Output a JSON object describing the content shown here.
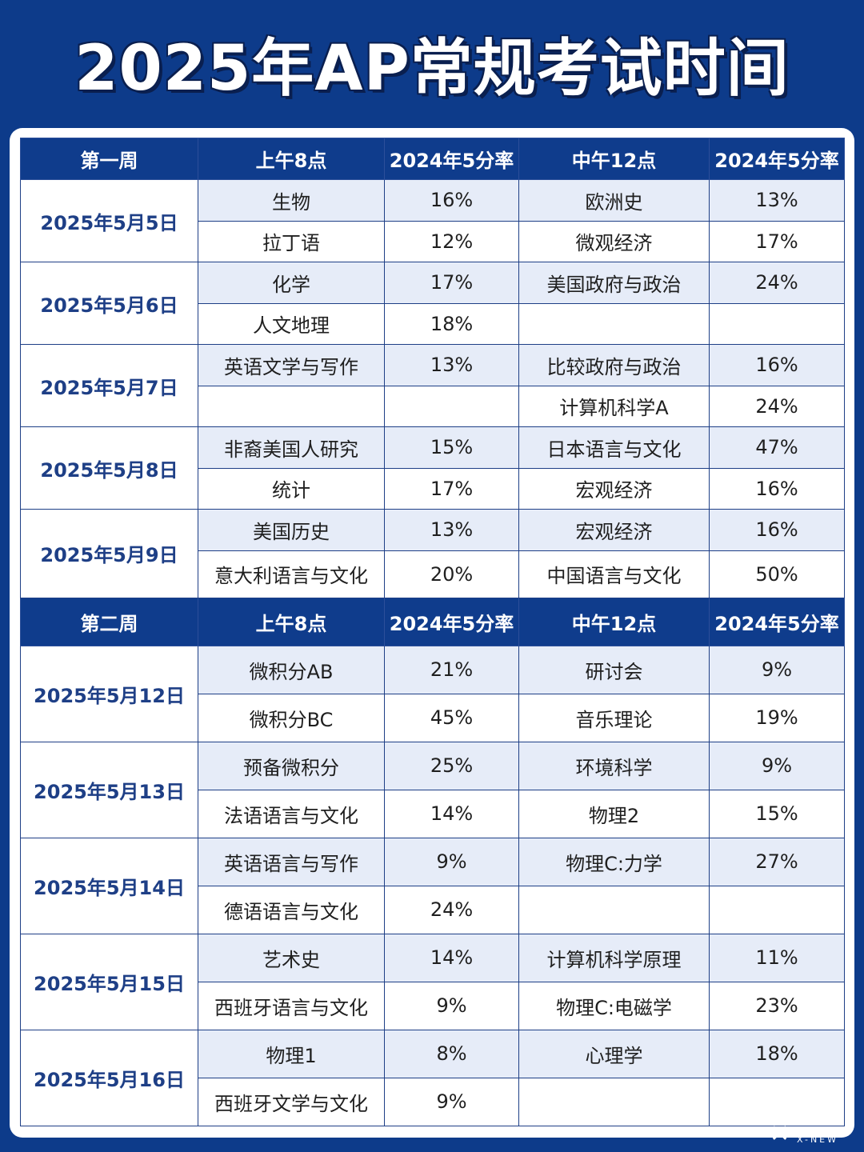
{
  "title": "2025年AP常规考试时间",
  "weeks": [
    {
      "header": [
        "第一周",
        "上午8点",
        "2024年5分率",
        "中午12点",
        "2024年5分率"
      ],
      "days": [
        {
          "date": "2025年5月5日",
          "rows": [
            {
              "am": "生物",
              "am_rate": "16%",
              "noon": "欧洲史",
              "noon_rate": "13%"
            },
            {
              "am": "拉丁语",
              "am_rate": "12%",
              "noon": "微观经济",
              "noon_rate": "17%"
            }
          ]
        },
        {
          "date": "2025年5月6日",
          "rows": [
            {
              "am": "化学",
              "am_rate": "17%",
              "noon": "美国政府与政治",
              "noon_rate": "24%"
            },
            {
              "am": "人文地理",
              "am_rate": "18%",
              "noon": "",
              "noon_rate": ""
            }
          ]
        },
        {
          "date": "2025年5月7日",
          "rows": [
            {
              "am": "英语文学与写作",
              "am_rate": "13%",
              "noon": "比较政府与政治",
              "noon_rate": "16%"
            },
            {
              "am": "",
              "am_rate": "",
              "noon": "计算机科学A",
              "noon_rate": "24%"
            }
          ]
        },
        {
          "date": "2025年5月8日",
          "rows": [
            {
              "am": "非裔美国人研究",
              "am_rate": "15%",
              "noon": "日本语言与文化",
              "noon_rate": "47%"
            },
            {
              "am": "统计",
              "am_rate": "17%",
              "noon": "宏观经济",
              "noon_rate": "16%"
            }
          ]
        },
        {
          "date": "2025年5月9日",
          "rows": [
            {
              "am": "美国历史",
              "am_rate": "13%",
              "noon": "宏观经济",
              "noon_rate": "16%"
            },
            {
              "am": "意大利语言与文化",
              "am_rate": "20%",
              "noon": "中国语言与文化",
              "noon_rate": "50%"
            }
          ]
        }
      ]
    },
    {
      "header": [
        "第二周",
        "上午8点",
        "2024年5分率",
        "中午12点",
        "2024年5分率"
      ],
      "days": [
        {
          "date": "2025年5月12日",
          "rows": [
            {
              "am": "微积分AB",
              "am_rate": "21%",
              "noon": "研讨会",
              "noon_rate": "9%"
            },
            {
              "am": "微积分BC",
              "am_rate": "45%",
              "noon": "音乐理论",
              "noon_rate": "19%"
            }
          ]
        },
        {
          "date": "2025年5月13日",
          "rows": [
            {
              "am": "预备微积分",
              "am_rate": "25%",
              "noon": "环境科学",
              "noon_rate": "9%"
            },
            {
              "am": "法语语言与文化",
              "am_rate": "14%",
              "noon": "物理2",
              "noon_rate": "15%"
            }
          ]
        },
        {
          "date": "2025年5月14日",
          "rows": [
            {
              "am": "英语语言与写作",
              "am_rate": "9%",
              "noon": "物理C:力学",
              "noon_rate": "27%"
            },
            {
              "am": "德语语言与文化",
              "am_rate": "24%",
              "noon": "",
              "noon_rate": ""
            }
          ]
        },
        {
          "date": "2025年5月15日",
          "rows": [
            {
              "am": "艺术史",
              "am_rate": "14%",
              "noon": "计算机科学原理",
              "noon_rate": "11%"
            },
            {
              "am": "西班牙语言与文化",
              "am_rate": "9%",
              "noon": "物理C:电磁学",
              "noon_rate": "23%"
            }
          ]
        },
        {
          "date": "2025年5月16日",
          "rows": [
            {
              "am": "物理1",
              "am_rate": "8%",
              "noon": "心理学",
              "noon_rate": "18%"
            },
            {
              "am": "西班牙文学与文化",
              "am_rate": "9%",
              "noon": "",
              "noon_rate": ""
            }
          ]
        }
      ]
    }
  ],
  "watermark": {
    "text": "X-NEW"
  }
}
